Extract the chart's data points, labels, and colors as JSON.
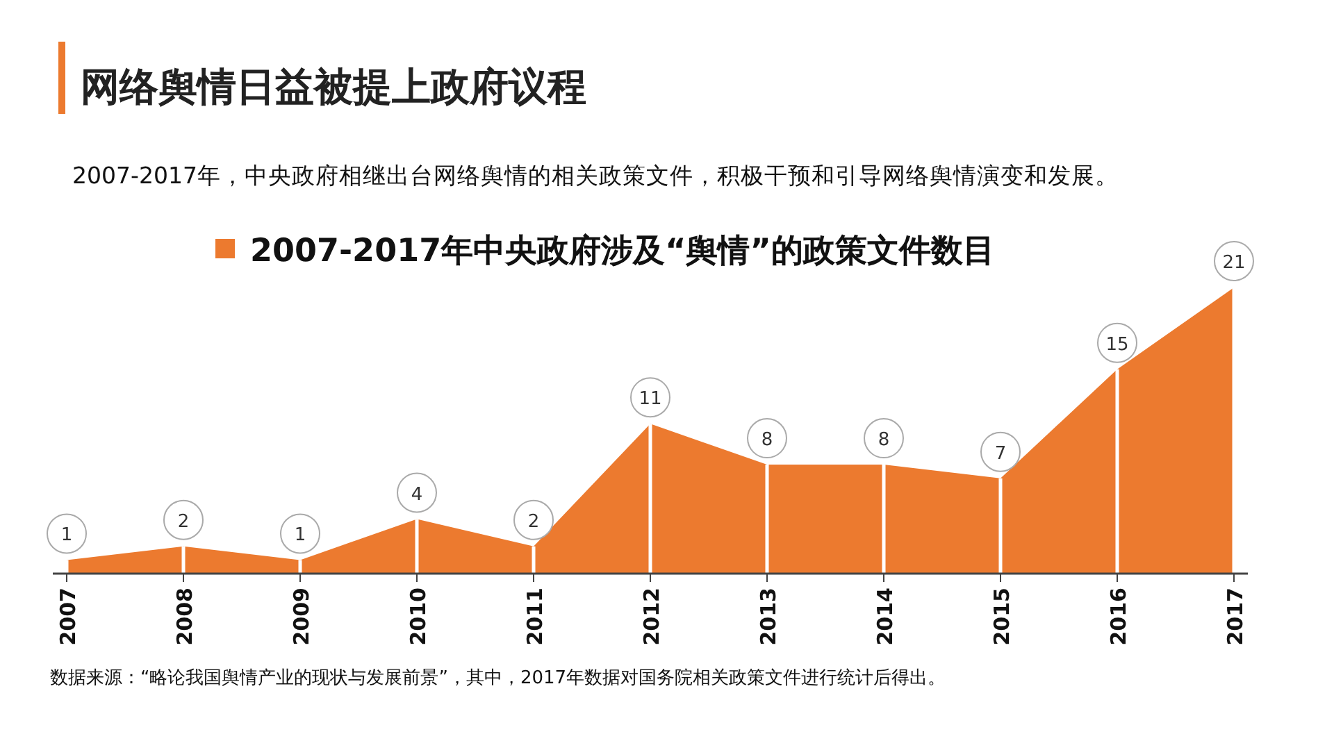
{
  "chart_data": {
    "type": "area",
    "title": "网络舆情日益被提上政府议程",
    "subtitle": "2007-2017年，中央政府相继出台网络舆情的相关政策文件，积极干预和引导网络舆情演变和发展。",
    "categories": [
      "2007",
      "2008",
      "2009",
      "2010",
      "2011",
      "2012",
      "2013",
      "2014",
      "2015",
      "2016",
      "2017"
    ],
    "series": [
      {
        "name": "2007-2017年中央政府涉及“舆情”的政策文件数目",
        "color": "#ec7a2f",
        "values": [
          1,
          2,
          1,
          4,
          2,
          11,
          8,
          8,
          7,
          15,
          21
        ]
      }
    ],
    "data_labels": true,
    "legend": "top",
    "annotations": [
      "数据来源：“略论我国舆情产业的现状与发展前景”，其中，2017年数据对国务院相关政策文件进行统计后得出。"
    ]
  }
}
